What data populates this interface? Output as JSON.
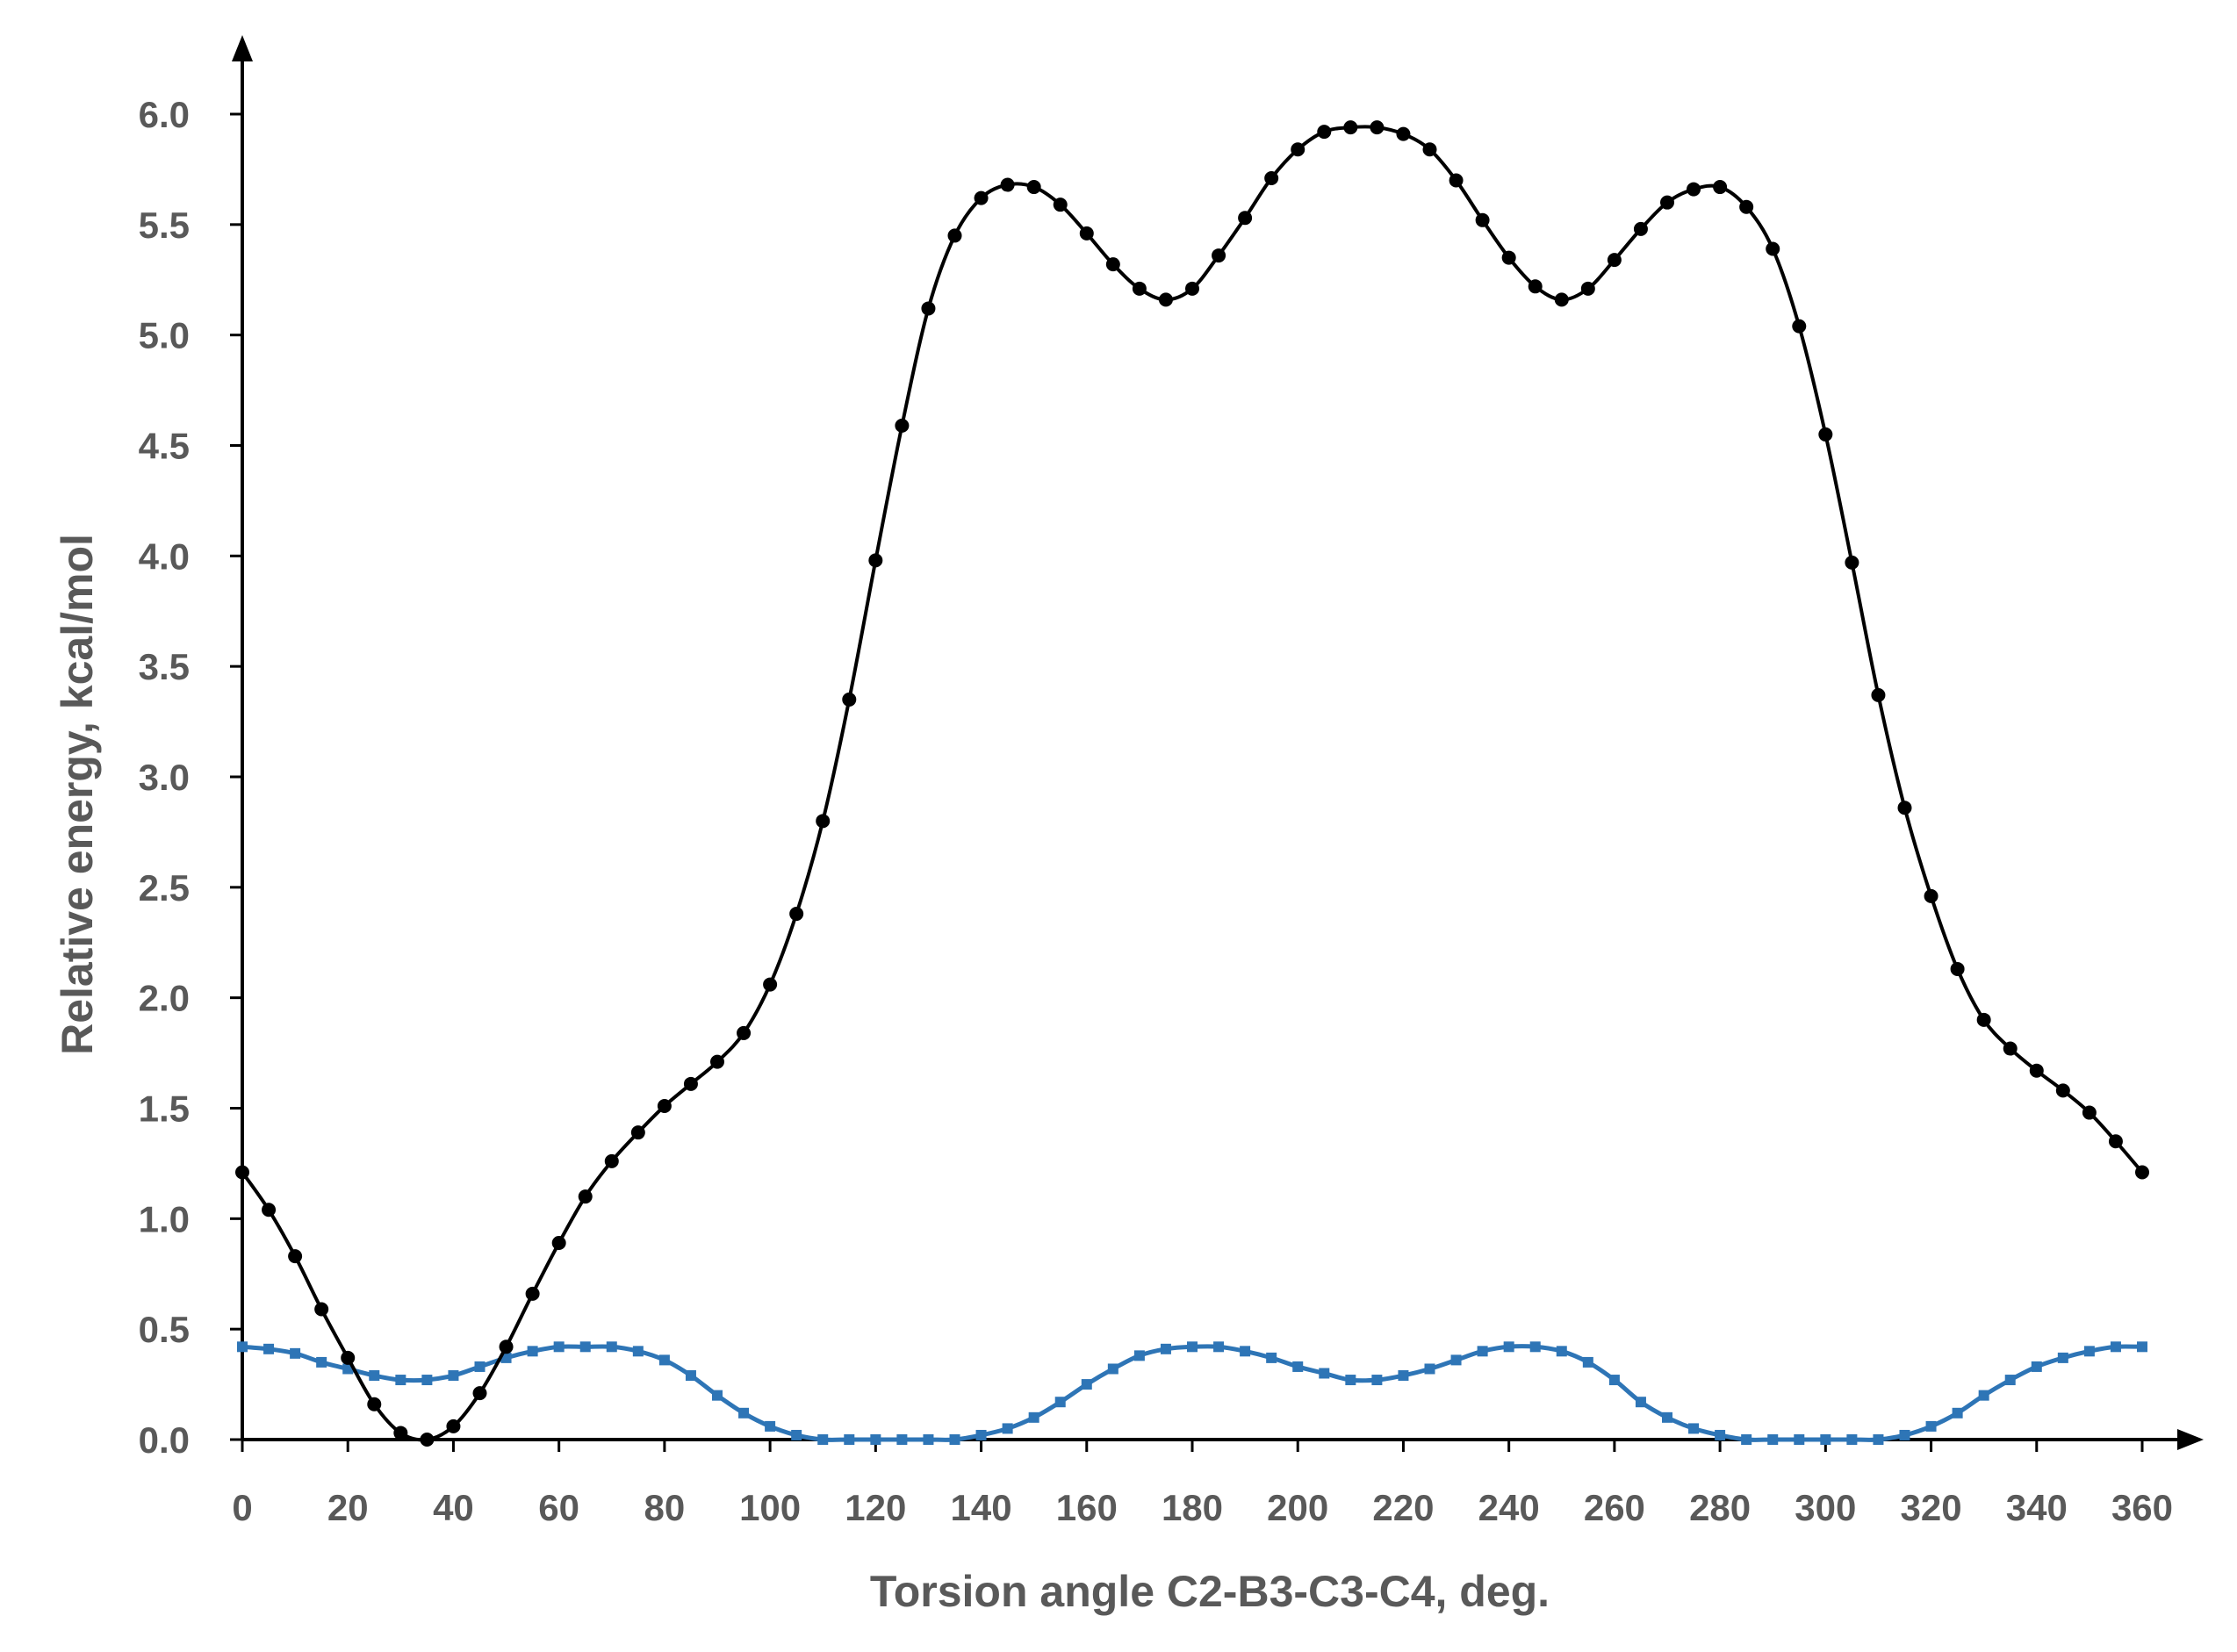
{
  "chart_data": {
    "type": "line",
    "title": "",
    "xlabel": "Torsion angle C2-B3-C3-C4, deg.",
    "ylabel": "Relative energy, kcal/mol",
    "xlim": [
      0,
      360
    ],
    "ylim": [
      0,
      6.0
    ],
    "x_ticks": [
      0,
      20,
      40,
      60,
      80,
      100,
      120,
      140,
      160,
      180,
      200,
      220,
      240,
      260,
      280,
      300,
      320,
      340,
      360
    ],
    "x_tick_labels": [
      "0",
      "20",
      "40",
      "60",
      "80",
      "100",
      "120",
      "140",
      "160",
      "180",
      "200",
      "220",
      "240",
      "260",
      "280",
      "300",
      "320",
      "340",
      "360"
    ],
    "y_ticks": [
      0,
      0.5,
      1.0,
      1.5,
      2.0,
      2.5,
      3.0,
      3.5,
      4.0,
      4.5,
      5.0,
      5.5,
      6.0
    ],
    "y_tick_labels": [
      "0.0",
      "0.5",
      "1.0",
      "1.5",
      "2.0",
      "2.5",
      "3.0",
      "3.5",
      "4.0",
      "4.5",
      "5.0",
      "5.5",
      "6.0"
    ],
    "grid": false,
    "legend": "none",
    "series": [
      {
        "color": "#000000",
        "marker": "circle",
        "x": [
          0,
          5,
          10,
          15,
          20,
          25,
          30,
          35,
          40,
          45,
          50,
          55,
          60,
          65,
          70,
          75,
          80,
          85,
          90,
          95,
          100,
          105,
          110,
          115,
          120,
          125,
          130,
          135,
          140,
          145,
          150,
          155,
          160,
          165,
          170,
          175,
          180,
          185,
          190,
          195,
          200,
          205,
          210,
          215,
          220,
          225,
          230,
          235,
          240,
          245,
          250,
          255,
          260,
          265,
          270,
          275,
          280,
          285,
          290,
          295,
          300,
          305,
          310,
          315,
          320,
          325,
          330,
          335,
          340,
          345,
          350,
          355,
          360
        ],
        "y": [
          1.21,
          1.04,
          0.83,
          0.59,
          0.37,
          0.16,
          0.03,
          0.0,
          0.06,
          0.21,
          0.42,
          0.66,
          0.89,
          1.1,
          1.26,
          1.39,
          1.51,
          1.61,
          1.71,
          1.84,
          2.06,
          2.38,
          2.8,
          3.35,
          3.98,
          4.59,
          5.12,
          5.45,
          5.62,
          5.68,
          5.67,
          5.59,
          5.46,
          5.32,
          5.21,
          5.16,
          5.21,
          5.36,
          5.53,
          5.71,
          5.84,
          5.92,
          5.94,
          5.94,
          5.91,
          5.84,
          5.7,
          5.52,
          5.35,
          5.22,
          5.16,
          5.21,
          5.34,
          5.48,
          5.6,
          5.66,
          5.67,
          5.58,
          5.39,
          5.04,
          4.55,
          3.97,
          3.37,
          2.86,
          2.46,
          2.13,
          1.9,
          1.77,
          1.67,
          1.58,
          1.48,
          1.35,
          1.21
        ]
      },
      {
        "color": "#2E75B6",
        "marker": "square",
        "x": [
          0,
          5,
          10,
          15,
          20,
          25,
          30,
          35,
          40,
          45,
          50,
          55,
          60,
          65,
          70,
          75,
          80,
          85,
          90,
          95,
          100,
          105,
          110,
          115,
          120,
          125,
          130,
          135,
          140,
          145,
          150,
          155,
          160,
          165,
          170,
          175,
          180,
          185,
          190,
          195,
          200,
          205,
          210,
          215,
          220,
          225,
          230,
          235,
          240,
          245,
          250,
          255,
          260,
          265,
          270,
          275,
          280,
          285,
          290,
          295,
          300,
          305,
          310,
          315,
          320,
          325,
          330,
          335,
          340,
          345,
          350,
          355,
          360
        ],
        "y": [
          0.42,
          0.41,
          0.39,
          0.35,
          0.32,
          0.29,
          0.27,
          0.27,
          0.29,
          0.33,
          0.37,
          0.4,
          0.42,
          0.42,
          0.42,
          0.4,
          0.36,
          0.29,
          0.2,
          0.12,
          0.06,
          0.02,
          0.0,
          0.0,
          0.0,
          0.0,
          0.0,
          0.0,
          0.02,
          0.05,
          0.1,
          0.17,
          0.25,
          0.32,
          0.38,
          0.41,
          0.42,
          0.42,
          0.4,
          0.37,
          0.33,
          0.3,
          0.27,
          0.27,
          0.29,
          0.32,
          0.36,
          0.4,
          0.42,
          0.42,
          0.4,
          0.35,
          0.27,
          0.17,
          0.1,
          0.05,
          0.02,
          0.0,
          0.0,
          0.0,
          0.0,
          0.0,
          0.0,
          0.02,
          0.06,
          0.12,
          0.2,
          0.27,
          0.33,
          0.37,
          0.4,
          0.42,
          0.42
        ]
      }
    ]
  }
}
